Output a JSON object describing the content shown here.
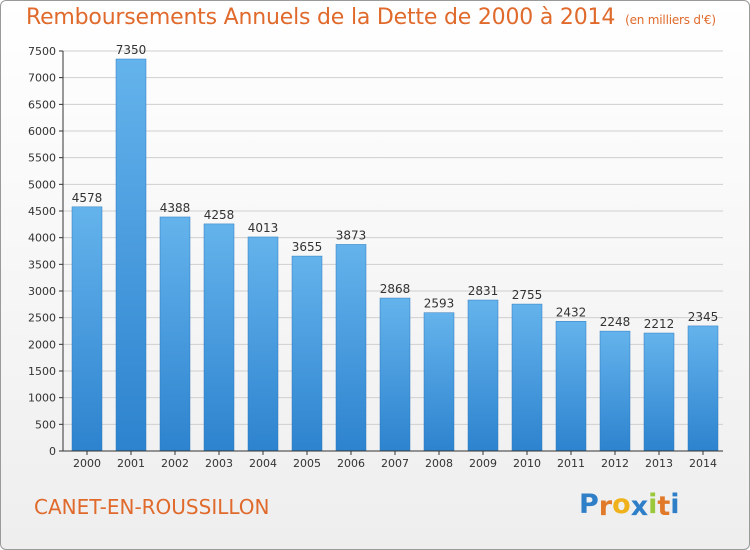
{
  "chart_data": {
    "type": "bar",
    "title": "Remboursements Annuels de la Dette de 2000 à 2014",
    "subtitle": "(en milliers d'€)",
    "xlabel": "",
    "ylabel": "",
    "categories": [
      "2000",
      "2001",
      "2002",
      "2003",
      "2004",
      "2005",
      "2006",
      "2007",
      "2008",
      "2009",
      "2010",
      "2011",
      "2012",
      "2013",
      "2014"
    ],
    "values": [
      4578,
      7350,
      4388,
      4258,
      4013,
      3655,
      3873,
      2868,
      2593,
      2831,
      2755,
      2432,
      2248,
      2212,
      2345
    ],
    "ylim": [
      0,
      7500
    ],
    "yticks": [
      0,
      500,
      1000,
      1500,
      2000,
      2500,
      3000,
      3500,
      4000,
      4500,
      5000,
      5500,
      6000,
      6500,
      7000,
      7500
    ],
    "grid": true,
    "legend": "none",
    "colors": {
      "bar_top": "#62b0ea",
      "bar_bottom": "#2f86d0",
      "title": "#e06a2c"
    }
  },
  "footer": {
    "city": "CANET-EN-ROUSSILLON",
    "logo_letters": [
      "P",
      "r",
      "o",
      "x",
      "i",
      "t",
      "i"
    ],
    "logo_colors": [
      "#2f7fc8",
      "#e07a2a",
      "#f0b21a",
      "#2f7fc8",
      "#9ac83a",
      "#e07a2a",
      "#2f7fc8"
    ]
  }
}
